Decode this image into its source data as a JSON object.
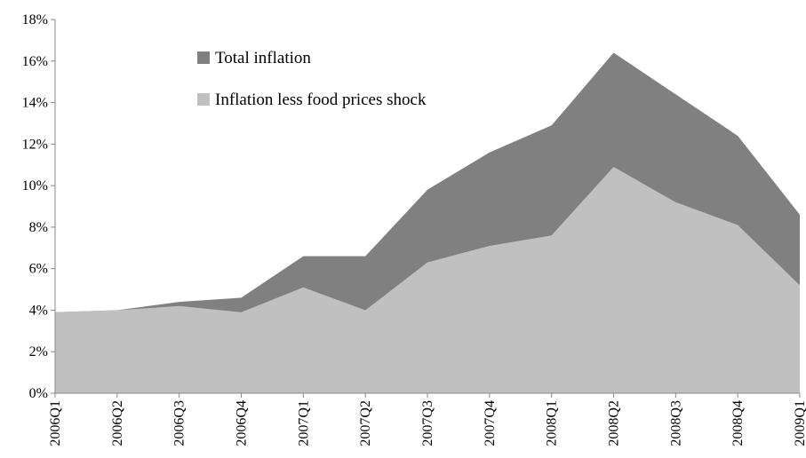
{
  "chart_data": {
    "type": "area",
    "categories": [
      "2006Q1",
      "2006Q2",
      "2006Q3",
      "2006Q4",
      "2007Q1",
      "2007Q2",
      "2007Q3",
      "2007Q4",
      "2008Q1",
      "2008Q2",
      "2008Q3",
      "2008Q4",
      "2009Q1"
    ],
    "series": [
      {
        "name": "Total inflation",
        "color": "#808080",
        "values": [
          3.9,
          4.0,
          4.4,
          4.6,
          6.6,
          6.6,
          9.8,
          11.6,
          12.9,
          16.4,
          14.4,
          12.4,
          8.6
        ]
      },
      {
        "name": "Inflation less food prices shock",
        "color": "#c0c0c0",
        "values": [
          3.9,
          4.0,
          4.2,
          3.9,
          5.1,
          4.0,
          6.3,
          7.1,
          7.6,
          10.9,
          9.2,
          8.1,
          5.2
        ]
      }
    ],
    "ylim": [
      0,
      18
    ],
    "yticks": [
      {
        "value": 0,
        "label": "0%"
      },
      {
        "value": 2,
        "label": "2%"
      },
      {
        "value": 4,
        "label": "4%"
      },
      {
        "value": 6,
        "label": "6%"
      },
      {
        "value": 8,
        "label": "8%"
      },
      {
        "value": 10,
        "label": "10%"
      },
      {
        "value": 12,
        "label": "12%"
      },
      {
        "value": 14,
        "label": "14%"
      },
      {
        "value": 16,
        "label": "16%"
      },
      {
        "value": 18,
        "label": "18%"
      }
    ],
    "grid": false,
    "legend": "top-left"
  }
}
